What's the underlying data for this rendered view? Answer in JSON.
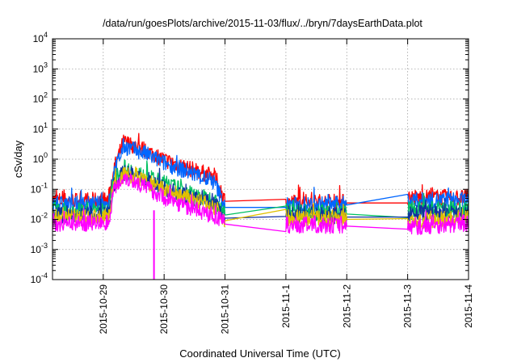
{
  "chart_data": {
    "type": "line",
    "title": "/data/run/goesPlots/archive/2015-11-03/flux/../bryn/7daysEarthData.plot",
    "xlabel": "Coordinated Universal Time (UTC)",
    "ylabel": "cSv/day",
    "yscale": "log",
    "ylim": [
      0.0001,
      10000
    ],
    "xlim": [
      "2015-10-28 04:00",
      "2015-11-04 00:00"
    ],
    "grid": true,
    "legend": "none",
    "x_ticks": [
      "2015-10-29",
      "2015-10-30",
      "2015-10-31",
      "2015-11-1",
      "2015-11-2",
      "2015-11-3",
      "2015-11-4"
    ],
    "y_ticks": [
      {
        "base": "10",
        "exp": "-4",
        "value": 0.0001
      },
      {
        "base": "10",
        "exp": "-3",
        "value": 0.001
      },
      {
        "base": "10",
        "exp": "-2",
        "value": 0.01
      },
      {
        "base": "10",
        "exp": "-1",
        "value": 0.1
      },
      {
        "base": "10",
        "exp": "0",
        "value": 1
      },
      {
        "base": "10",
        "exp": "1",
        "value": 10
      },
      {
        "base": "10",
        "exp": "2",
        "value": 100
      },
      {
        "base": "10",
        "exp": "3",
        "value": 1000
      },
      {
        "base": "10",
        "exp": "4",
        "value": 10000
      }
    ],
    "series": [
      {
        "color": "#ff0000",
        "x": [
          "2015-10-28 04:00",
          "2015-10-29 02:00",
          "2015-10-29 04:00",
          "2015-10-29 08:00",
          "2015-10-29 16:00",
          "2015-10-30 00:00",
          "2015-10-30 12:00",
          "2015-10-30 20:00",
          "2015-10-31 00:00",
          "2015-11-01 00:00",
          "2015-11-02 00:00",
          "2015-11-03 00:00",
          "2015-11-04 00:00"
        ],
        "y": [
          0.04,
          0.04,
          0.4,
          3.5,
          2.0,
          0.9,
          0.4,
          0.25,
          0.04,
          0.035,
          0.035,
          0.05,
          0.05
        ]
      },
      {
        "color": "#0066ff",
        "x": [
          "2015-10-28 04:00",
          "2015-10-29 02:00",
          "2015-10-29 04:00",
          "2015-10-29 08:00",
          "2015-10-29 16:00",
          "2015-10-30 00:00",
          "2015-10-30 12:00",
          "2015-10-30 20:00",
          "2015-10-31 00:00",
          "2015-11-01 00:00",
          "2015-11-02 00:00",
          "2015-11-03 00:00",
          "2015-11-04 00:00"
        ],
        "y": [
          0.03,
          0.03,
          0.3,
          2.5,
          1.5,
          0.7,
          0.3,
          0.15,
          0.025,
          0.028,
          0.03,
          0.04,
          0.04
        ]
      },
      {
        "color": "#00c060",
        "x": [
          "2015-10-28 04:00",
          "2015-10-29 02:00",
          "2015-10-29 04:00",
          "2015-10-29 08:00",
          "2015-10-29 16:00",
          "2015-10-30 00:00",
          "2015-10-30 12:00",
          "2015-10-30 20:00",
          "2015-10-31 00:00",
          "2015-11-01 00:00",
          "2015-11-02 00:00",
          "2015-11-03 00:00",
          "2015-11-04 00:00"
        ],
        "y": [
          0.018,
          0.018,
          0.15,
          0.5,
          0.25,
          0.15,
          0.06,
          0.04,
          0.014,
          0.018,
          0.015,
          0.02,
          0.02
        ]
      },
      {
        "color": "#1030a0",
        "x": [
          "2015-10-28 04:00",
          "2015-10-29 02:00",
          "2015-10-29 04:00",
          "2015-10-29 08:00",
          "2015-10-29 16:00",
          "2015-10-30 00:00",
          "2015-10-30 12:00",
          "2015-10-30 20:00",
          "2015-10-31 00:00",
          "2015-11-01 00:00",
          "2015-11-02 00:00",
          "2015-11-03 00:00",
          "2015-11-04 00:00"
        ],
        "y": [
          0.013,
          0.013,
          0.12,
          0.35,
          0.2,
          0.1,
          0.045,
          0.03,
          0.011,
          0.014,
          0.012,
          0.015,
          0.015
        ]
      },
      {
        "color": "#e0c000",
        "x": [
          "2015-10-28 04:00",
          "2015-10-29 02:00",
          "2015-10-29 04:00",
          "2015-10-29 08:00",
          "2015-10-29 16:00",
          "2015-10-30 00:00",
          "2015-10-30 12:00",
          "2015-10-30 20:00",
          "2015-10-31 00:00",
          "2015-11-01 00:00",
          "2015-11-02 00:00",
          "2015-11-03 00:00",
          "2015-11-04 00:00"
        ],
        "y": [
          0.011,
          0.011,
          0.1,
          0.3,
          0.18,
          0.09,
          0.04,
          0.025,
          0.009,
          0.011,
          0.01,
          0.007,
          0.012
        ]
      },
      {
        "color": "#ff00ff",
        "x": [
          "2015-10-28 04:00",
          "2015-10-29 02:00",
          "2015-10-29 04:00",
          "2015-10-29 08:00",
          "2015-10-29 16:00",
          "2015-10-30 00:00",
          "2015-10-30 12:00",
          "2015-10-30 20:00",
          "2015-10-31 00:00",
          "2015-11-01 00:00",
          "2015-11-02 00:00",
          "2015-11-03 00:00",
          "2015-11-04 00:00"
        ],
        "y": [
          0.007,
          0.007,
          0.08,
          0.25,
          0.12,
          0.05,
          0.02,
          0.012,
          0.007,
          0.006,
          0.006,
          0.005,
          0.007
        ]
      }
    ]
  }
}
